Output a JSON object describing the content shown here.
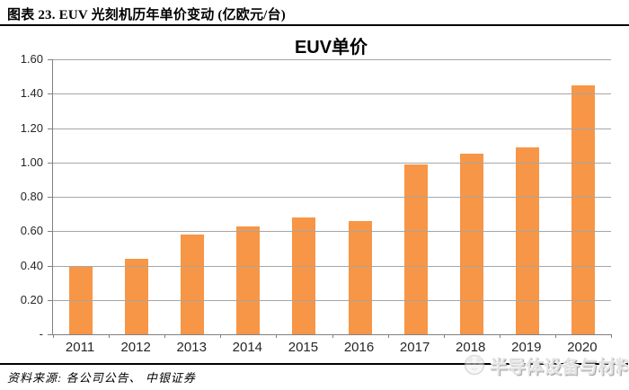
{
  "figure": {
    "caption": "图表 23. EUV 光刻机历年单价变动 (亿欧元/台)",
    "source": "资料来源: 各公司公告、 中银证券",
    "watermark": "半导体设备与材料"
  },
  "chart_data": {
    "type": "bar",
    "title": "EUV单价",
    "categories": [
      "2011",
      "2012",
      "2013",
      "2014",
      "2015",
      "2016",
      "2017",
      "2018",
      "2019",
      "2020"
    ],
    "values": [
      0.4,
      0.44,
      0.58,
      0.63,
      0.68,
      0.66,
      0.99,
      1.05,
      1.09,
      1.45
    ],
    "xlabel": "",
    "ylabel": "",
    "ylim": [
      0,
      1.6
    ],
    "ytick_step": 0.2,
    "ytick_labels_top_down": [
      "1.60",
      "1.40",
      "1.20",
      "1.00",
      "0.80",
      "0.60",
      "0.40",
      "0.20",
      "-"
    ],
    "grid": true,
    "legend": "none",
    "bar_color": "#F79646",
    "gridline_color": "#A6A6A6",
    "axis_color": "#808080",
    "label_color": "#262626"
  }
}
